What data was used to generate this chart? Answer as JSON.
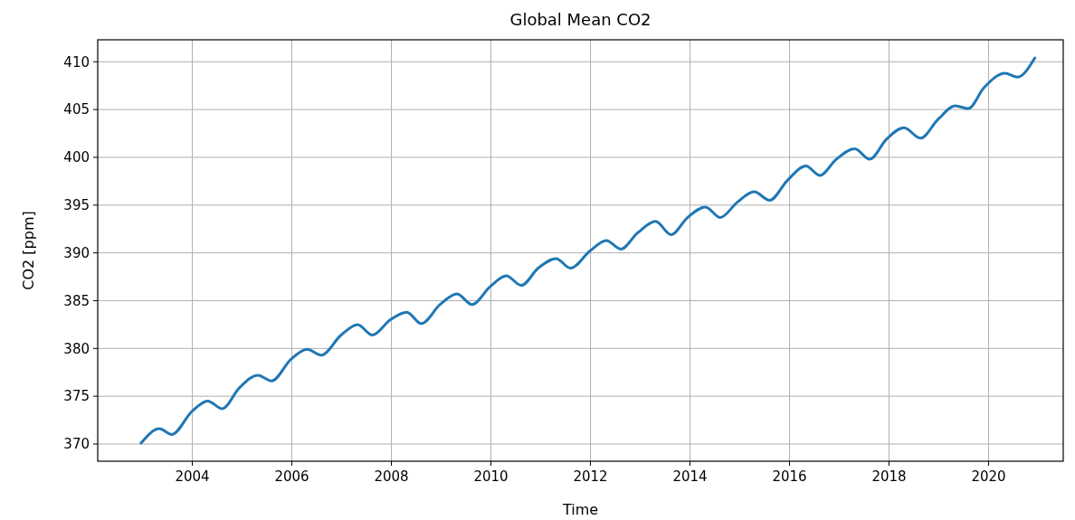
{
  "chart_data": {
    "type": "line",
    "title": "Global Mean CO2",
    "xlabel": "Time",
    "ylabel": "CO2 [ppm]",
    "series": [
      {
        "color": "#1f77b4",
        "x": [
          2002.97,
          2003.34,
          2003.59,
          2003.99,
          2004.31,
          2004.6,
          2004.95,
          2005.32,
          2005.59,
          2005.99,
          2006.31,
          2006.59,
          2006.99,
          2007.32,
          2007.62,
          2007.98,
          2008.31,
          2008.6,
          2008.98,
          2009.32,
          2009.62,
          2009.99,
          2010.31,
          2010.61,
          2010.95,
          2011.31,
          2011.6,
          2011.99,
          2012.32,
          2012.61,
          2012.95,
          2013.31,
          2013.62,
          2013.95,
          2014.31,
          2014.61,
          2014.95,
          2015.29,
          2015.6,
          2015.96,
          2016.33,
          2016.61,
          2016.94,
          2017.31,
          2017.61,
          2017.95,
          2018.3,
          2018.63,
          2018.99,
          2019.33,
          2019.59,
          2019.91,
          2020.33,
          2020.58,
          2020.93
        ],
        "values": [
          370.1,
          371.6,
          371.0,
          373.4,
          374.5,
          373.7,
          375.9,
          377.2,
          376.6,
          378.9,
          379.9,
          379.3,
          381.4,
          382.5,
          381.4,
          383.0,
          383.8,
          382.6,
          384.6,
          385.7,
          384.6,
          386.5,
          387.6,
          386.6,
          388.4,
          389.4,
          388.4,
          390.2,
          391.3,
          390.4,
          392.1,
          393.3,
          391.9,
          393.7,
          394.8,
          393.7,
          395.3,
          396.4,
          395.5,
          397.6,
          399.1,
          398.1,
          399.8,
          400.9,
          399.8,
          401.9,
          403.1,
          402.0,
          404.0,
          405.4,
          405.1,
          407.3,
          408.8,
          408.4,
          410.4
        ]
      }
    ],
    "xlim": [
      2002.1,
      2021.5
    ],
    "xticks": [
      2004,
      2006,
      2008,
      2010,
      2012,
      2014,
      2016,
      2018,
      2020
    ],
    "ylim": [
      368.2,
      412.3
    ],
    "yticks": [
      370,
      375,
      380,
      385,
      390,
      395,
      400,
      405,
      410
    ],
    "grid": true,
    "marker": "none",
    "line_style": "solid"
  }
}
